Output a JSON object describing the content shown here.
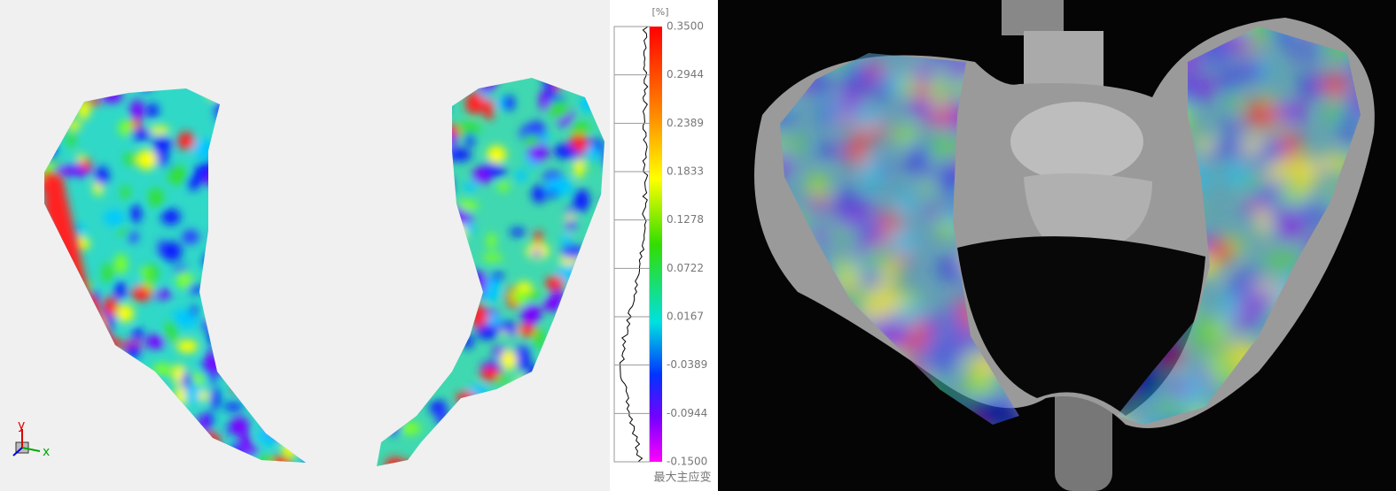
{
  "colorbar": {
    "unit": "[%]",
    "tick_labels": [
      "0.3500",
      "0.2944",
      "0.2389",
      "0.1833",
      "0.1278",
      "0.0722",
      "0.0167",
      "-0.0389",
      "-0.0944",
      "-0.1500"
    ],
    "title": "最大主应变"
  },
  "axes_triad": {
    "y": "y",
    "x": "x"
  }
}
